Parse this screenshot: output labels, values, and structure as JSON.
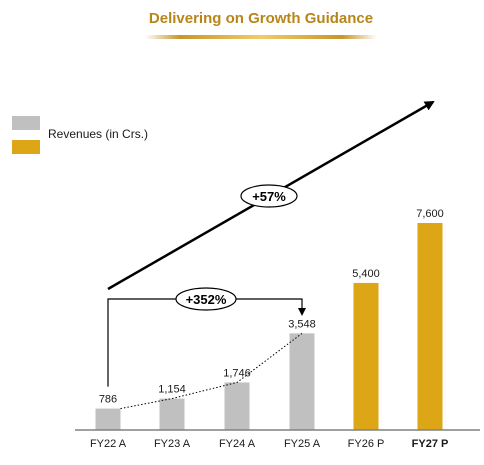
{
  "page": {
    "title": "Delivering on Growth Guidance"
  },
  "colors": {
    "title": "#b7861a",
    "underline": "#e2b53c",
    "actual": "#c0c0c0",
    "projected": "#dca616",
    "axis": "#808080",
    "arrow": "#000000"
  },
  "chart_data": {
    "type": "bar",
    "title": "Delivering on Growth Guidance",
    "categories": [
      "FY22 A",
      "FY23 A",
      "FY24 A",
      "FY25 A",
      "FY26 P",
      "FY27 P"
    ],
    "series": [
      {
        "name": "Revenues (in Crs.)",
        "values": [
          786,
          1154,
          1746,
          3548,
          null,
          null
        ]
      },
      {
        "name": "",
        "values": [
          null,
          null,
          null,
          null,
          5400,
          7600
        ]
      }
    ],
    "values": [
      786,
      1154,
      1746,
      3548,
      5400,
      7600
    ],
    "value_labels": [
      "786",
      "1,154",
      "1,746",
      "3,548",
      "5,400",
      "7,600"
    ],
    "bar_kind": [
      "actual",
      "actual",
      "actual",
      "actual",
      "projected",
      "projected"
    ],
    "bold_categories": [
      "FY27 P"
    ],
    "ylim": [
      0,
      7600
    ],
    "grid": false,
    "legend": {
      "placement": "top-left",
      "items": [
        {
          "label": "Revenues (in Crs.)",
          "kind": "actual"
        },
        {
          "label": "",
          "kind": "projected"
        }
      ]
    },
    "annotations": [
      {
        "type": "growth-bracket",
        "text": "+352%",
        "from": "FY22 A",
        "to": "FY25 A"
      },
      {
        "type": "trend-arrow",
        "text": "+57%"
      }
    ]
  }
}
